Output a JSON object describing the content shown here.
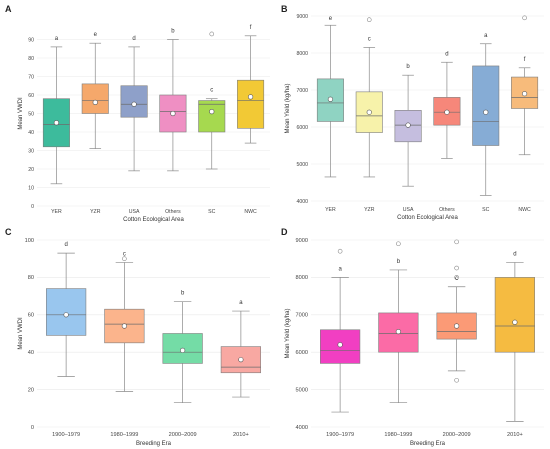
{
  "figure": {
    "panel_letters": [
      "A",
      "B",
      "C",
      "D"
    ]
  },
  "chart_data": [
    {
      "panel": "A",
      "type": "box",
      "ylabel": "Mean VWDI",
      "xlabel": "Cotton Ecological Area",
      "ylim": [
        0,
        100
      ],
      "yticks": [
        0,
        10,
        20,
        30,
        40,
        50,
        60,
        70,
        80,
        90
      ],
      "grid": true,
      "categories": [
        "YER",
        "YZR",
        "USA",
        "Others",
        "SC",
        "NWC"
      ],
      "boxes": [
        {
          "category": "YER",
          "color": "#3dbb9c",
          "whisker_low": 12,
          "q1": 32,
          "median": 44,
          "q3": 58,
          "whisker_high": 86,
          "mean": 45,
          "outliers": [],
          "letter": "a"
        },
        {
          "category": "YZR",
          "color": "#f5a86b",
          "whisker_low": 31,
          "q1": 50,
          "median": 57,
          "q3": 66,
          "whisker_high": 88,
          "mean": 56,
          "outliers": [],
          "letter": "e"
        },
        {
          "category": "USA",
          "color": "#8ea0c9",
          "whisker_low": 19,
          "q1": 48,
          "median": 55,
          "q3": 65,
          "whisker_high": 86,
          "mean": 55,
          "outliers": [],
          "letter": "d"
        },
        {
          "category": "Others",
          "color": "#ef8fc3",
          "whisker_low": 19,
          "q1": 40,
          "median": 51,
          "q3": 60,
          "whisker_high": 90,
          "mean": 50,
          "outliers": [],
          "letter": "b"
        },
        {
          "category": "SC",
          "color": "#a6d94f",
          "whisker_low": 20,
          "q1": 40,
          "median": 55,
          "q3": 57,
          "whisker_high": 58,
          "mean": 51,
          "outliers": [
            93
          ],
          "letter": "c"
        },
        {
          "category": "NWC",
          "color": "#f2c935",
          "whisker_low": 34,
          "q1": 42,
          "median": 57,
          "q3": 68,
          "whisker_high": 92,
          "mean": 59,
          "outliers": [],
          "letter": "f"
        }
      ]
    },
    {
      "panel": "B",
      "type": "box",
      "ylabel": "Mean Yield (kg/ha)",
      "xlabel": "Cotton Ecological Area",
      "ylim": [
        4000,
        9000
      ],
      "yticks": [
        4000,
        5000,
        6000,
        7000,
        8000,
        9000
      ],
      "grid": true,
      "categories": [
        "YER",
        "YZR",
        "USA",
        "Others",
        "SC",
        "NWC"
      ],
      "boxes": [
        {
          "category": "YER",
          "color": "#8fd3c2",
          "whisker_low": 4650,
          "q1": 6150,
          "median": 6650,
          "q3": 7300,
          "whisker_high": 8750,
          "mean": 6750,
          "outliers": [],
          "letter": "e"
        },
        {
          "category": "YZR",
          "color": "#f7f2aa",
          "whisker_low": 4650,
          "q1": 5850,
          "median": 6300,
          "q3": 6950,
          "whisker_high": 8150,
          "mean": 6400,
          "outliers": [
            8900
          ],
          "letter": "c"
        },
        {
          "category": "USA",
          "color": "#c5bedf",
          "whisker_low": 4400,
          "q1": 5600,
          "median": 6050,
          "q3": 6450,
          "whisker_high": 7400,
          "mean": 6050,
          "outliers": [],
          "letter": "b"
        },
        {
          "category": "Others",
          "color": "#f6877a",
          "whisker_low": 5150,
          "q1": 6050,
          "median": 6400,
          "q3": 6800,
          "whisker_high": 7750,
          "mean": 6400,
          "outliers": [],
          "letter": "d"
        },
        {
          "category": "SC",
          "color": "#86acd5",
          "whisker_low": 4150,
          "q1": 5500,
          "median": 6150,
          "q3": 7650,
          "whisker_high": 8250,
          "mean": 6400,
          "outliers": [],
          "letter": "a"
        },
        {
          "category": "NWC",
          "color": "#f7bb7b",
          "whisker_low": 5250,
          "q1": 6500,
          "median": 6800,
          "q3": 7350,
          "whisker_high": 7600,
          "mean": 6900,
          "outliers": [
            8950
          ],
          "letter": "f"
        }
      ]
    },
    {
      "panel": "C",
      "type": "box",
      "ylabel": "Mean VWDI",
      "xlabel": "Breeding Era",
      "ylim": [
        0,
        100
      ],
      "yticks": [
        0,
        20,
        40,
        60,
        80,
        100
      ],
      "grid": true,
      "categories": [
        "1900–1979",
        "1980–1999",
        "2000–2009",
        "2010+"
      ],
      "boxes": [
        {
          "category": "1900–1979",
          "color": "#99c6ee",
          "whisker_low": 27,
          "q1": 49,
          "median": 60,
          "q3": 74,
          "whisker_high": 93,
          "mean": 60,
          "outliers": [],
          "letter": "d"
        },
        {
          "category": "1980–1999",
          "color": "#fbb48c",
          "whisker_low": 19,
          "q1": 45,
          "median": 55,
          "q3": 63,
          "whisker_high": 88,
          "mean": 54,
          "outliers": [
            90
          ],
          "letter": "c"
        },
        {
          "category": "2000–2009",
          "color": "#74dca6",
          "whisker_low": 13,
          "q1": 34,
          "median": 40,
          "q3": 50,
          "whisker_high": 67,
          "mean": 41,
          "outliers": [],
          "letter": "b"
        },
        {
          "category": "2010+",
          "color": "#f8a8a2",
          "whisker_low": 16,
          "q1": 29,
          "median": 32,
          "q3": 43,
          "whisker_high": 62,
          "mean": 36,
          "outliers": [],
          "letter": "a"
        }
      ]
    },
    {
      "panel": "D",
      "type": "box",
      "ylabel": "Mean Yield (kg/ha)",
      "xlabel": "Breeding Era",
      "ylim": [
        4000,
        9000
      ],
      "yticks": [
        4000,
        5000,
        6000,
        7000,
        8000,
        9000
      ],
      "grid": true,
      "categories": [
        "1900–1979",
        "1980–1999",
        "2000–2009",
        "2010+"
      ],
      "boxes": [
        {
          "category": "1900–1979",
          "color": "#f13fc2",
          "whisker_low": 4400,
          "q1": 5700,
          "median": 6050,
          "q3": 6600,
          "whisker_high": 8000,
          "mean": 6200,
          "outliers": [
            8700
          ],
          "letter": "a"
        },
        {
          "category": "1980–1999",
          "color": "#fb6ba6",
          "whisker_low": 4650,
          "q1": 6000,
          "median": 6500,
          "q3": 7050,
          "whisker_high": 8200,
          "mean": 6550,
          "outliers": [
            8900
          ],
          "letter": "b"
        },
        {
          "category": "2000–2009",
          "color": "#fb9a76",
          "whisker_low": 5500,
          "q1": 6350,
          "median": 6550,
          "q3": 7050,
          "whisker_high": 7750,
          "mean": 6700,
          "outliers": [
            5250,
            8000,
            8250,
            8950
          ],
          "letter": "c"
        },
        {
          "category": "2010+",
          "color": "#f5bb41",
          "whisker_low": 4150,
          "q1": 6000,
          "median": 6700,
          "q3": 8000,
          "whisker_high": 8400,
          "mean": 6800,
          "outliers": [],
          "letter": "d"
        }
      ]
    }
  ]
}
